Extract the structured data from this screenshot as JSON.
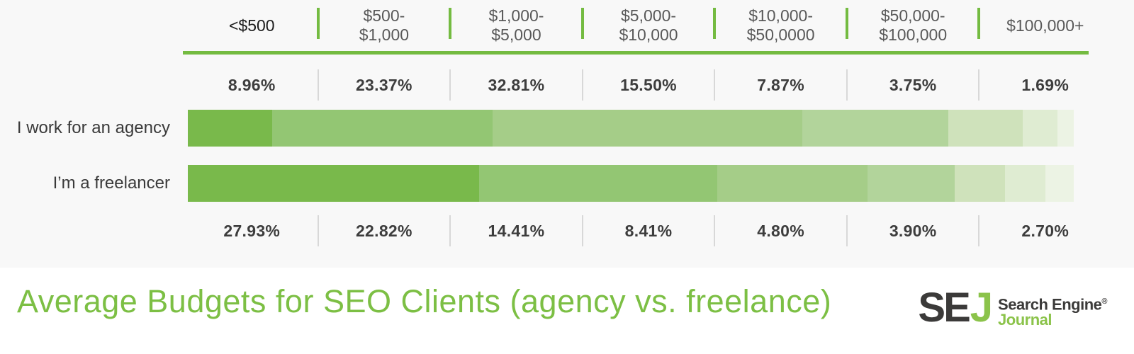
{
  "title": {
    "text": "Average Budgets for SEO Clients (agency vs. freelance)"
  },
  "colors": {
    "background": "#f8f8f8",
    "accent_green": "#74bb41",
    "title_green": "#7cbf44",
    "logo_green": "#8bc34a",
    "logo_dark": "#3b3a39",
    "pct_divider": "#d8d8d8",
    "text_dark": "#3d3d3d",
    "header_gray": "#595959",
    "header_first_black": "#1c1c1c"
  },
  "header": {
    "columns": [
      {
        "lines": [
          "<$500"
        ],
        "emphasis": true
      },
      {
        "lines": [
          "$500-",
          "$1,000"
        ]
      },
      {
        "lines": [
          "$1,000-",
          "$5,000"
        ]
      },
      {
        "lines": [
          "$5,000-",
          "$10,000"
        ]
      },
      {
        "lines": [
          "$10,000-",
          "$50,0000"
        ]
      },
      {
        "lines": [
          "$50,000-",
          "$100,000"
        ]
      },
      {
        "lines": [
          "$100,000+"
        ]
      }
    ]
  },
  "chart_data": {
    "type": "bar",
    "subtype": "horizontal-stacked-normalized",
    "title": "Average Budgets for SEO Clients (agency vs. freelance)",
    "categories": [
      "<$500",
      "$500-$1,000",
      "$1,000-$5,000",
      "$5,000-$10,000",
      "$10,000-$50,0000",
      "$50,000-$100,000",
      "$100,000+"
    ],
    "unit": "percent of respondents",
    "series": [
      {
        "name": "I work for an agency",
        "values": [
          8.96,
          23.37,
          32.81,
          15.5,
          7.87,
          3.75,
          1.69
        ],
        "labels": [
          "8.96%",
          "23.37%",
          "32.81%",
          "15.50%",
          "7.87%",
          "3.75%",
          "1.69%"
        ]
      },
      {
        "name": "I’m a freelancer",
        "values": [
          27.93,
          22.82,
          14.41,
          8.41,
          4.8,
          3.9,
          2.7
        ],
        "labels": [
          "27.93%",
          "22.82%",
          "14.41%",
          "8.41%",
          "4.80%",
          "3.90%",
          "2.70%"
        ]
      }
    ],
    "segment_colors": [
      "#79b94b",
      "#93c673",
      "#a5cd88",
      "#b2d49b",
      "#cfe2bb",
      "#dfecd2",
      "#ecf3e4"
    ],
    "legend_position": "none",
    "grid": false
  },
  "branding": {
    "monogram_dark": "SE",
    "monogram_green": "J",
    "name_line1": "Search Engine",
    "registered_mark": "®",
    "name_line2": "Journal"
  }
}
